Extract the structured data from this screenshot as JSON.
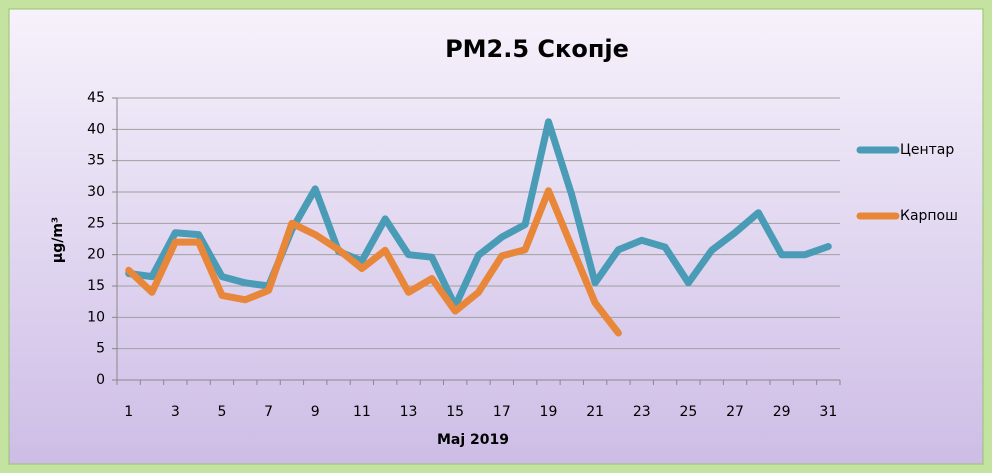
{
  "chart_data": {
    "type": "line",
    "title": "PM2.5 Скопје",
    "x_label": "Мај 2019",
    "y_label": "μg/m³",
    "categories": [
      "1",
      null,
      "3",
      null,
      "5",
      null,
      "7",
      null,
      "9",
      null,
      "11",
      null,
      "13",
      null,
      "15",
      null,
      "17",
      null,
      "19",
      null,
      "21",
      null,
      "23",
      null,
      "25",
      null,
      "27",
      null,
      "29",
      null,
      "31"
    ],
    "series": [
      {
        "name": "Центар",
        "color": "#4a9bb5",
        "values": [
          17,
          16.5,
          23.5,
          23.2,
          16.5,
          15.5,
          15,
          24,
          30.5,
          20.5,
          19,
          25.7,
          20,
          19.6,
          11.8,
          19.9,
          22.8,
          24.8,
          41.2,
          29.5,
          15.5,
          20.8,
          22.3,
          21.2,
          15.5,
          20.7,
          23.5,
          26.7,
          20,
          20,
          21.3
        ]
      },
      {
        "name": "Карпош",
        "color": "#e8873a",
        "values": [
          17.5,
          14,
          22,
          22,
          13.5,
          12.8,
          14.3,
          25,
          23.2,
          20.8,
          17.8,
          20.7,
          14,
          16.2,
          11,
          14,
          19.8,
          20.8,
          30.2,
          21.2,
          12.3,
          7.5,
          null,
          null,
          null,
          null,
          null,
          null,
          null,
          null,
          null
        ]
      }
    ],
    "ylim": [
      0,
      45
    ],
    "yticks": [
      0,
      5,
      10,
      15,
      20,
      25,
      30,
      35,
      40,
      45
    ],
    "grid": true,
    "legend": "right"
  }
}
